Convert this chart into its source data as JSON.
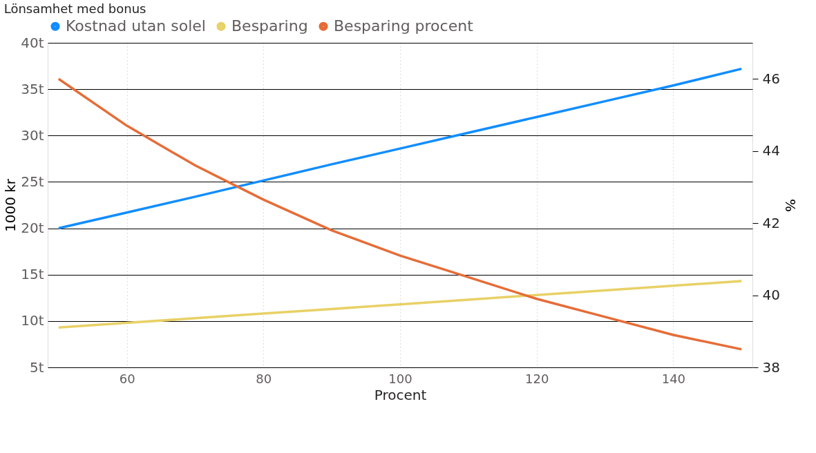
{
  "chart_data": {
    "type": "line",
    "title": "Lönsamhet med bonus",
    "xlabel": "Procent",
    "ylabel": "1000 kr",
    "y2label": "%",
    "x": [
      50,
      60,
      70,
      80,
      90,
      100,
      110,
      120,
      130,
      140,
      150
    ],
    "series": [
      {
        "name": "Kostnad utan solel",
        "color": "#118dff",
        "values": [
          20.0,
          21.7,
          23.4,
          25.15,
          26.9,
          28.6,
          30.3,
          32.0,
          33.7,
          35.4,
          37.2
        ]
      },
      {
        "name": "Besparing",
        "color": "#e8d166",
        "values": [
          9.3,
          9.8,
          10.3,
          10.8,
          11.3,
          11.8,
          12.3,
          12.8,
          13.3,
          13.8,
          14.3
        ]
      },
      {
        "name": "Besparing procent",
        "color": "#e66c37",
        "axis": "y2",
        "values": [
          46.0,
          44.7,
          43.6,
          42.65,
          41.8,
          41.1,
          40.5,
          39.9,
          39.4,
          38.9,
          38.5
        ]
      }
    ],
    "xlim": [
      48.4,
      151.6
    ],
    "xticks": [
      60,
      80,
      100,
      120,
      140
    ],
    "ylim": [
      5,
      40
    ],
    "yticks": [
      {
        "value": 5,
        "label": "5t"
      },
      {
        "value": 10,
        "label": "10t"
      },
      {
        "value": 15,
        "label": "15t"
      },
      {
        "value": 20,
        "label": "20t"
      },
      {
        "value": 25,
        "label": "25t"
      },
      {
        "value": 30,
        "label": "30t"
      },
      {
        "value": 35,
        "label": "35t"
      },
      {
        "value": 40,
        "label": "40t"
      }
    ],
    "y2lim": [
      38,
      47
    ],
    "y2ticks": [
      38,
      40,
      42,
      44,
      46
    ],
    "grid": true,
    "legend": "top left",
    "marker": "none",
    "line_style": "solid"
  }
}
